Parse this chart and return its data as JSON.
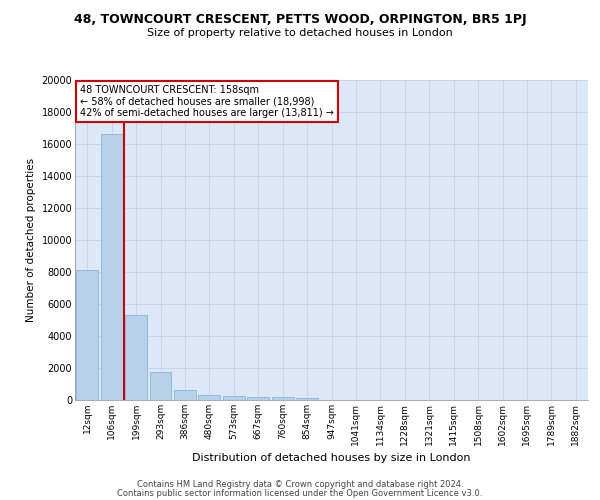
{
  "title1": "48, TOWNCOURT CRESCENT, PETTS WOOD, ORPINGTON, BR5 1PJ",
  "title2": "Size of property relative to detached houses in London",
  "xlabel": "Distribution of detached houses by size in London",
  "ylabel": "Number of detached properties",
  "bar_labels": [
    "12sqm",
    "106sqm",
    "199sqm",
    "293sqm",
    "386sqm",
    "480sqm",
    "573sqm",
    "667sqm",
    "760sqm",
    "854sqm",
    "947sqm",
    "1041sqm",
    "1134sqm",
    "1228sqm",
    "1321sqm",
    "1415sqm",
    "1508sqm",
    "1602sqm",
    "1695sqm",
    "1789sqm",
    "1882sqm"
  ],
  "bar_values": [
    8100,
    16600,
    5300,
    1750,
    650,
    340,
    270,
    210,
    170,
    130,
    0,
    0,
    0,
    0,
    0,
    0,
    0,
    0,
    0,
    0,
    0
  ],
  "bar_color": "#b8d0ea",
  "bar_edgecolor": "#7aaed6",
  "vline_x": 1.5,
  "vline_color": "#cc0000",
  "ylim": [
    0,
    20000
  ],
  "yticks": [
    0,
    2000,
    4000,
    6000,
    8000,
    10000,
    12000,
    14000,
    16000,
    18000,
    20000
  ],
  "annotation_title": "48 TOWNCOURT CRESCENT: 158sqm",
  "annotation_line1": "← 58% of detached houses are smaller (18,998)",
  "annotation_line2": "42% of semi-detached houses are larger (13,811) →",
  "annotation_box_color": "#ffffff",
  "annotation_box_edgecolor": "#cc0000",
  "footer1": "Contains HM Land Registry data © Crown copyright and database right 2024.",
  "footer2": "Contains public sector information licensed under the Open Government Licence v3.0.",
  "background_color": "#ffffff",
  "grid_color": "#c8d4e8",
  "axes_bg": "#dce8f8"
}
